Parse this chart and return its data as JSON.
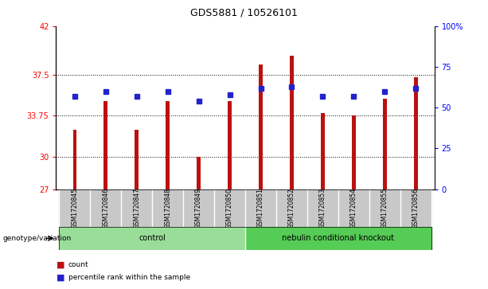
{
  "title": "GDS5881 / 10526101",
  "samples": [
    "GSM1720845",
    "GSM1720846",
    "GSM1720847",
    "GSM1720848",
    "GSM1720849",
    "GSM1720850",
    "GSM1720851",
    "GSM1720852",
    "GSM1720853",
    "GSM1720854",
    "GSM1720855",
    "GSM1720856"
  ],
  "count_values": [
    32.5,
    35.1,
    32.5,
    35.1,
    30.0,
    35.1,
    38.5,
    39.3,
    34.0,
    33.75,
    35.3,
    37.3
  ],
  "percentile_values": [
    57,
    60,
    57,
    60,
    54,
    58,
    62,
    63,
    57,
    57,
    60,
    62
  ],
  "ylim_left": [
    27,
    42
  ],
  "ylim_right": [
    0,
    100
  ],
  "yticks_left": [
    27,
    30,
    33.75,
    37.5,
    42
  ],
  "yticks_right": [
    0,
    25,
    50,
    75,
    100
  ],
  "ytick_labels_right": [
    "0",
    "25",
    "50",
    "75",
    "100%"
  ],
  "ytick_labels_left": [
    "27",
    "30",
    "33.75",
    "37.5",
    "42"
  ],
  "grid_lines": [
    30,
    33.75,
    37.5
  ],
  "bar_color": "#BB1111",
  "marker_color": "#2222CC",
  "bar_width": 0.12,
  "control_label": "control",
  "knockout_label": "nebulin conditional knockout",
  "genotype_label": "genotype/variation",
  "legend_count": "count",
  "legend_percentile": "percentile rank within the sample",
  "sample_bg_color": "#C8C8C8",
  "control_bg_color": "#99DD99",
  "knockout_bg_color": "#55CC55",
  "title_fontsize": 9,
  "tick_fontsize": 7,
  "label_fontsize": 7
}
